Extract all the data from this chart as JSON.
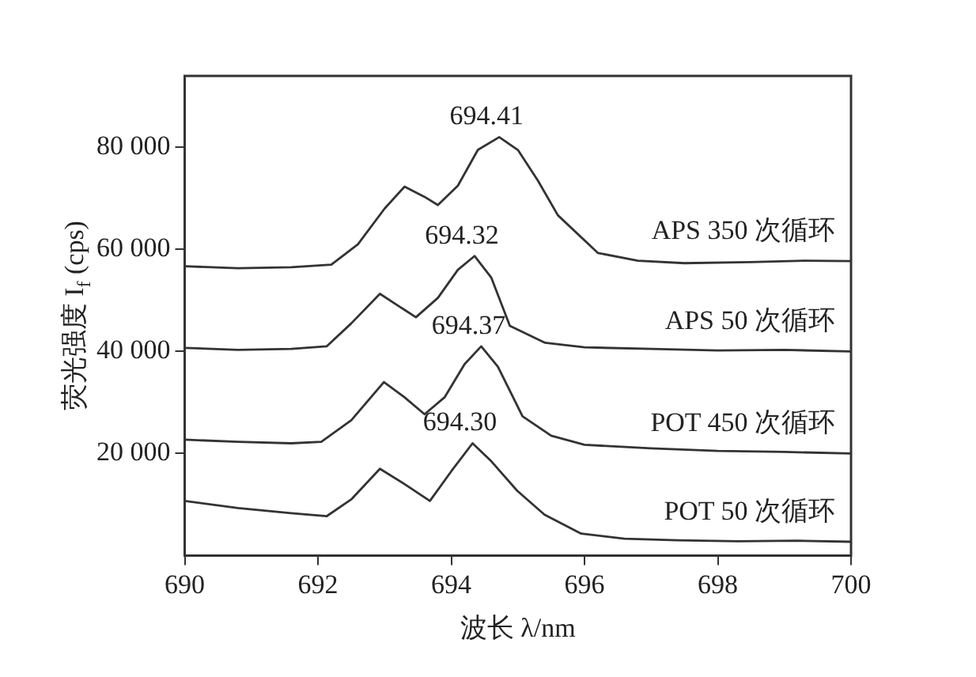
{
  "chart_data": {
    "type": "line",
    "xlabel": "波长 λ/nm",
    "ylabel": "荧光强度 I$_{f}$ (cps)",
    "xlim": [
      690,
      700
    ],
    "xticks": [
      690,
      692,
      694,
      696,
      698,
      700
    ],
    "ylim": [
      0,
      94000
    ],
    "yticks": [
      {
        "value": 20000,
        "label": "20 000"
      },
      {
        "value": 40000,
        "label": "40 000"
      },
      {
        "value": 60000,
        "label": "60 000"
      },
      {
        "value": 80000,
        "label": "80 000"
      }
    ],
    "grid": false,
    "legend": false,
    "marker": "none",
    "line_style": "solid",
    "x": [
      690,
      690.8,
      691.6,
      692.2,
      692.6,
      693.0,
      693.3,
      693.6,
      693.8,
      694.1,
      694.4,
      694.72,
      695.0,
      695.3,
      695.6,
      696.2,
      696.8,
      697.5,
      698.5,
      699.3,
      700
    ],
    "series": [
      {
        "name": "APS 350 次循环",
        "color": "#333333",
        "values": [
          56700,
          56300,
          56500,
          57000,
          61000,
          68000,
          72300,
          70300,
          68700,
          72500,
          79500,
          82000,
          79500,
          73500,
          66700,
          59300,
          57800,
          57300,
          57500,
          57800,
          57700
        ]
      },
      {
        "name": "APS 50 次循环",
        "color": "#333333",
        "x": [
          690,
          690.8,
          691.6,
          692.13,
          692.5,
          692.93,
          693.2,
          693.47,
          693.8,
          694.1,
          694.35,
          694.6,
          694.88,
          695.41,
          696.0,
          697.0,
          698.0,
          699.0,
          700
        ],
        "values": [
          40700,
          40300,
          40500,
          41000,
          45500,
          51300,
          49000,
          46700,
          50500,
          56000,
          58700,
          54500,
          45000,
          41700,
          40800,
          40500,
          40200,
          40300,
          40000
        ]
      },
      {
        "name": "POT 450 次循环",
        "color": "#333333",
        "x": [
          690,
          690.8,
          691.6,
          692.05,
          692.5,
          692.99,
          693.3,
          693.6,
          693.9,
          694.2,
          694.45,
          694.7,
          695.07,
          695.5,
          696.0,
          697.0,
          698.0,
          699.0,
          700
        ],
        "values": [
          22700,
          22300,
          22000,
          22300,
          26500,
          34000,
          31000,
          27700,
          31000,
          37500,
          41000,
          37000,
          27300,
          23500,
          21700,
          21000,
          20500,
          20300,
          20000
        ]
      },
      {
        "name": "POT 50 次循环",
        "color": "#333333",
        "x": [
          690,
          690.8,
          691.6,
          692.13,
          692.5,
          692.93,
          693.3,
          693.68,
          694.0,
          694.32,
          694.6,
          694.99,
          695.4,
          695.95,
          696.6,
          697.4,
          698.3,
          699.2,
          700
        ],
        "values": [
          10700,
          9300,
          8300,
          7700,
          11000,
          17000,
          14000,
          10700,
          16500,
          22000,
          18500,
          12700,
          8000,
          4300,
          3300,
          3000,
          2800,
          2900,
          2700
        ]
      }
    ],
    "annotations": [
      {
        "text": "694.41",
        "x": 694.72,
        "y": 82000
      },
      {
        "text": "694.32",
        "x": 694.35,
        "y": 58700
      },
      {
        "text": "694.37",
        "x": 694.45,
        "y": 41000
      },
      {
        "text": "694.30",
        "x": 694.32,
        "y": 22000
      }
    ]
  }
}
